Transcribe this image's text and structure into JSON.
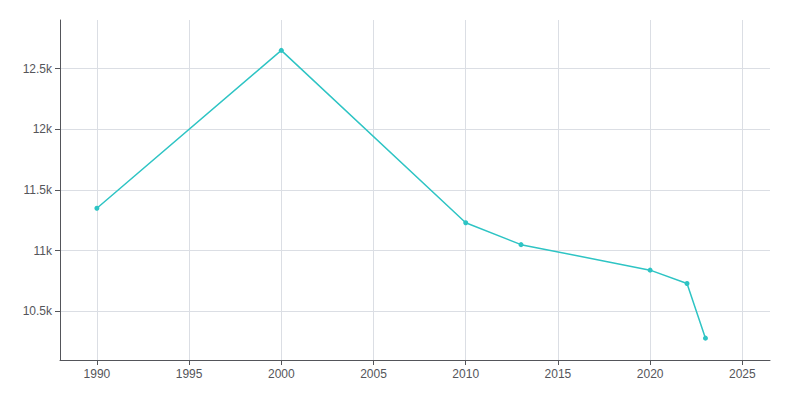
{
  "chart_data": {
    "type": "line",
    "x": [
      1990,
      2000,
      2010,
      2013,
      2020,
      2022,
      2023
    ],
    "values": [
      11350,
      12650,
      11230,
      11050,
      10840,
      10730,
      10280
    ],
    "color": "#2ec4c4",
    "marker": "o",
    "xlim": [
      1988,
      2026.5
    ],
    "ylim": [
      10100,
      12900
    ],
    "xticks": [
      1990,
      1995,
      2000,
      2005,
      2010,
      2015,
      2020,
      2025
    ],
    "yticks": [
      {
        "value": 10500,
        "label": "10.5k"
      },
      {
        "value": 11000,
        "label": "11k"
      },
      {
        "value": 11500,
        "label": "11.5k"
      },
      {
        "value": 12000,
        "label": "12k"
      },
      {
        "value": 12500,
        "label": "12.5k"
      }
    ],
    "grid": true
  }
}
